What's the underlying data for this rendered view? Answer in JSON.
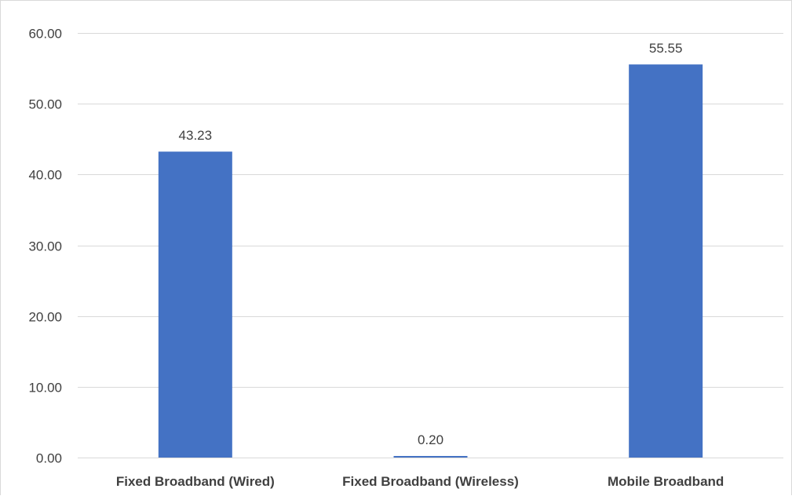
{
  "chart_data": {
    "type": "bar",
    "title": "",
    "xlabel": "",
    "ylabel": "",
    "categories": [
      "Fixed Broadband (Wired)",
      "Fixed Broadband (Wireless)",
      "Mobile Broadband"
    ],
    "values": [
      43.23,
      0.2,
      55.55
    ],
    "data_labels": [
      "43.23",
      "0.20",
      "55.55"
    ],
    "ylim": [
      0,
      60
    ],
    "yticks": [
      0,
      10,
      20,
      30,
      40,
      50,
      60
    ],
    "ytick_labels": [
      "0.00",
      "10.00",
      "20.00",
      "30.00",
      "40.00",
      "50.00",
      "60.00"
    ],
    "grid": true,
    "legend": "none",
    "colors": {
      "bar": "#4472c4",
      "grid": "#d9d9d9",
      "text": "#404040"
    }
  }
}
